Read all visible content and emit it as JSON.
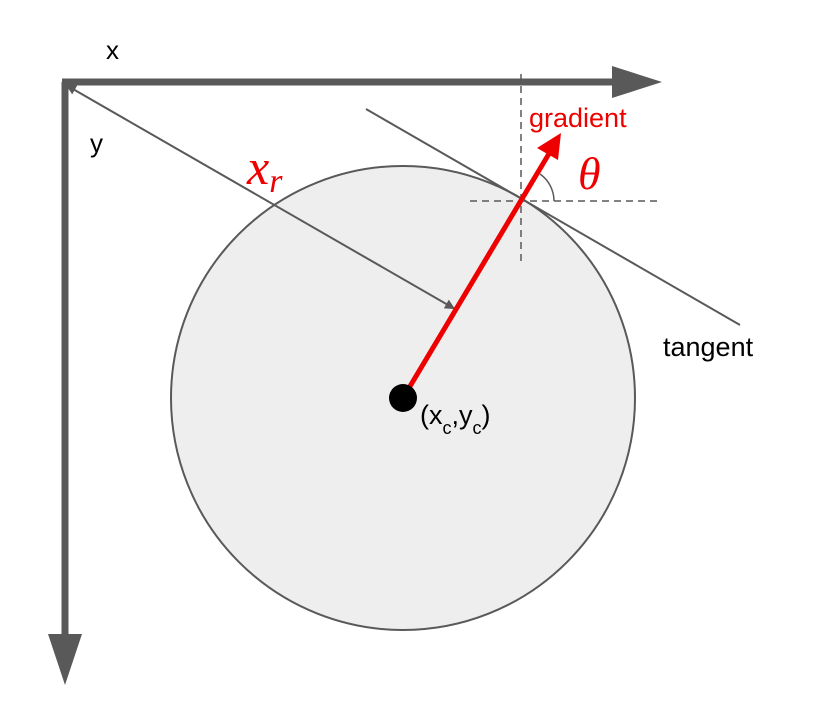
{
  "axes": {
    "x_label": "x",
    "y_label": "y"
  },
  "labels": {
    "gradient": "gradient",
    "theta": "θ",
    "radius_main": "x",
    "radius_sub": "r",
    "tangent": "tangent",
    "center_open": "(x",
    "center_sub1": "c",
    "center_mid": ",y",
    "center_sub2": "c",
    "center_close": ")"
  },
  "colors": {
    "axis": "#595959",
    "gradient": "#ee0000",
    "circle_fill": "#eeeeee",
    "circle_stroke": "#595959",
    "line": "#595959",
    "guide": "#595959",
    "center": "#000000"
  }
}
